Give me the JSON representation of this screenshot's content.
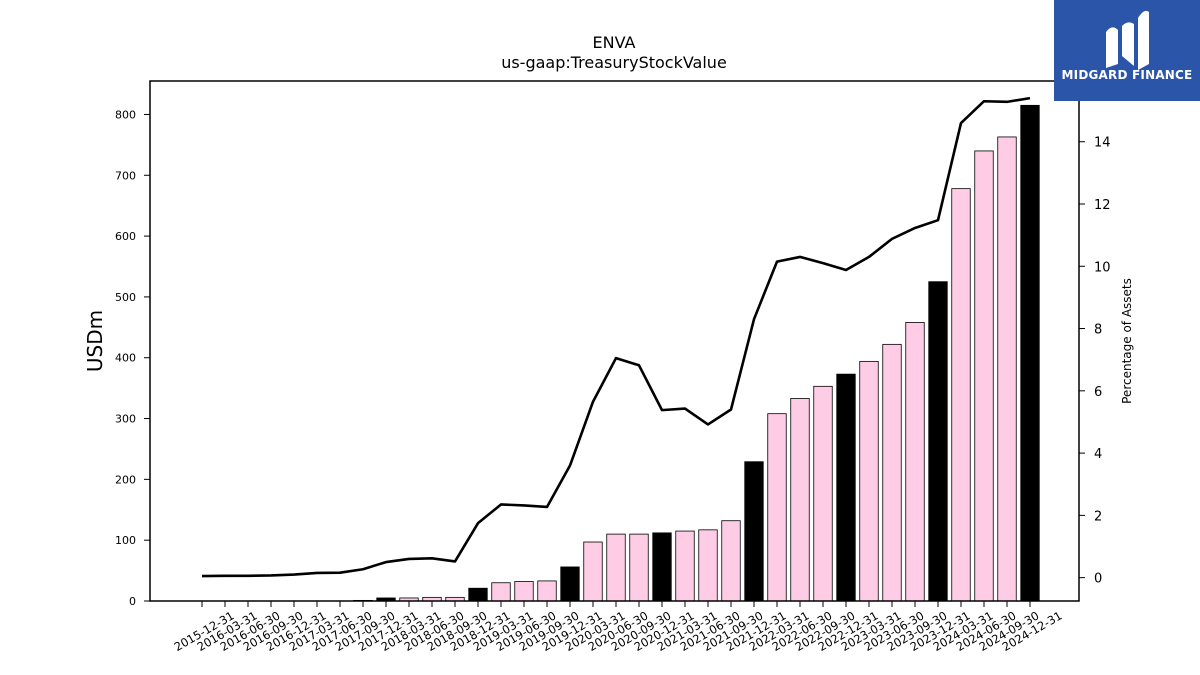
{
  "chart_data": {
    "type": "bar",
    "title": "ENVA",
    "subtitle": "us-gaap:TreasuryStockValue",
    "ylabel": "USDm",
    "y2label": "Percentage of Assets",
    "ylim": [
      0,
      855
    ],
    "y2lim": [
      -0.75,
      15.95
    ],
    "yticks": [
      0,
      100,
      200,
      300,
      400,
      500,
      600,
      700,
      800
    ],
    "y2ticks": [
      0,
      2,
      4,
      6,
      8,
      10,
      12,
      14
    ],
    "grid": false,
    "categories": [
      "2015-12-31",
      "2016-03-31",
      "2016-06-30",
      "2016-09-30",
      "2016-12-31",
      "2017-03-31",
      "2017-06-30",
      "2017-09-30",
      "2017-12-31",
      "2018-03-31",
      "2018-06-30",
      "2018-09-30",
      "2018-12-31",
      "2019-03-31",
      "2019-06-30",
      "2019-09-30",
      "2019-12-31",
      "2020-03-31",
      "2020-06-30",
      "2020-09-30",
      "2020-12-31",
      "2021-03-31",
      "2021-06-30",
      "2021-09-30",
      "2021-12-31",
      "2022-03-31",
      "2022-06-30",
      "2022-09-30",
      "2022-12-31",
      "2023-03-31",
      "2023-06-30",
      "2023-09-30",
      "2023-12-31",
      "2024-03-31",
      "2024-06-30",
      "2024-09-30",
      "2024-12-31"
    ],
    "series": [
      {
        "kind": "bar",
        "values": [
          0,
          0,
          0,
          0,
          0,
          0,
          0,
          1,
          5,
          5,
          6,
          6,
          21,
          30,
          32,
          33,
          56,
          97,
          110,
          110,
          112,
          115,
          117,
          132,
          229,
          308,
          333,
          353,
          373,
          394,
          422,
          458,
          525,
          678,
          740,
          763,
          815
        ],
        "year_end": [
          false,
          false,
          false,
          false,
          true,
          false,
          false,
          false,
          true,
          false,
          false,
          false,
          true,
          false,
          false,
          false,
          true,
          false,
          false,
          false,
          true,
          false,
          false,
          false,
          true,
          false,
          false,
          false,
          true,
          false,
          false,
          false,
          true,
          false,
          false,
          false,
          true
        ]
      },
      {
        "kind": "line",
        "axis": "right",
        "values": [
          0.05,
          0.06,
          0.06,
          0.07,
          0.1,
          0.15,
          0.16,
          0.27,
          0.5,
          0.6,
          0.62,
          0.52,
          1.75,
          2.35,
          2.32,
          2.27,
          3.6,
          5.65,
          7.05,
          6.82,
          5.38,
          5.43,
          4.92,
          5.4,
          8.3,
          10.15,
          10.3,
          10.1,
          9.88,
          10.3,
          10.88,
          11.23,
          11.48,
          14.6,
          15.3,
          15.28,
          15.4
        ]
      }
    ],
    "colors": {
      "bar": "#ffcce6",
      "bar_year_end": "#000000",
      "line": "#000000"
    }
  },
  "logo": {
    "text": "MIDGARD FINANCE",
    "background": "#2a55a8"
  }
}
